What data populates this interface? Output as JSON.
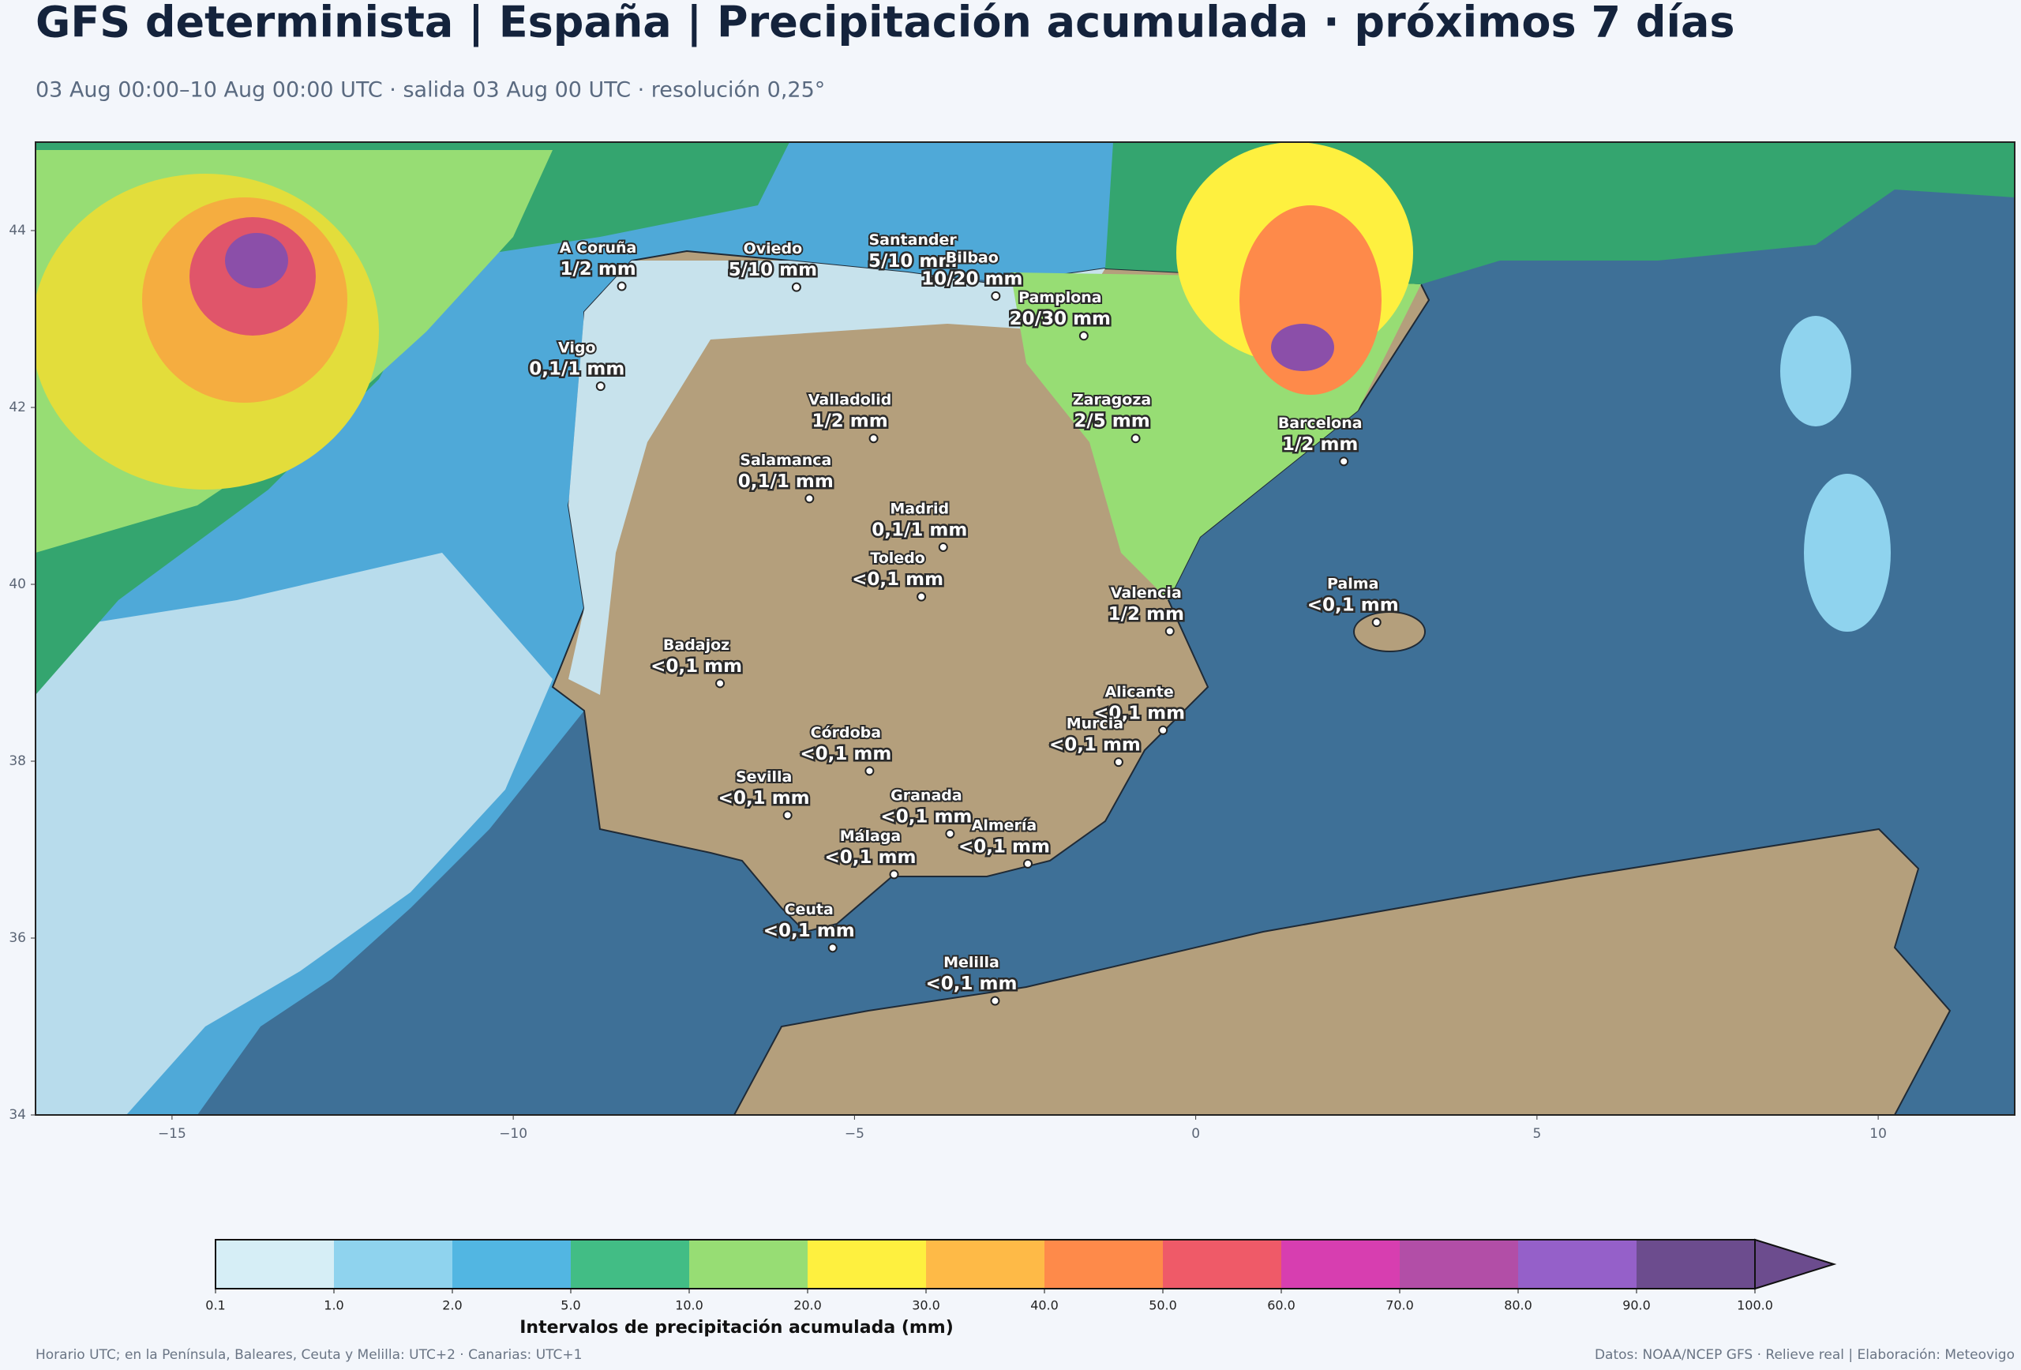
{
  "header": {
    "title": "GFS determinista | España | Precipitación acumulada · próximos 7 días",
    "subtitle": "03 Aug 00:00–10 Aug 00:00 UTC · salida 03 Aug 00 UTC · resolución 0,25°"
  },
  "map": {
    "xlim": [
      -17,
      12
    ],
    "ylim": [
      34,
      45
    ],
    "xticks": [
      {
        "value": -15,
        "label": "−15"
      },
      {
        "value": -10,
        "label": "−10"
      },
      {
        "value": -5,
        "label": "−5"
      },
      0,
      5,
      10
    ],
    "yticks": [
      34,
      36,
      38,
      40,
      42,
      44
    ],
    "cities": [
      {
        "name": "A Coruña",
        "value_label": "1/2 mm",
        "lon": -8.41,
        "lat": 43.37
      },
      {
        "name": "Oviedo",
        "value_label": "5/10 mm",
        "lon": -5.85,
        "lat": 43.36
      },
      {
        "name": "Santander",
        "value_label": "5/10 mm",
        "lon": -3.8,
        "lat": 43.46
      },
      {
        "name": "Bilbao",
        "value_label": "10/20 mm",
        "lon": -2.93,
        "lat": 43.26
      },
      {
        "name": "Pamplona",
        "value_label": "20/30 mm",
        "lon": -1.64,
        "lat": 42.81
      },
      {
        "name": "Vigo",
        "value_label": "0,1/1 mm",
        "lon": -8.72,
        "lat": 42.24
      },
      {
        "name": "Valladolid",
        "value_label": "1/2 mm",
        "lon": -4.72,
        "lat": 41.65
      },
      {
        "name": "Zaragoza",
        "value_label": "2/5 mm",
        "lon": -0.88,
        "lat": 41.65
      },
      {
        "name": "Barcelona",
        "value_label": "1/2 mm",
        "lon": 2.17,
        "lat": 41.39
      },
      {
        "name": "Salamanca",
        "value_label": "0,1/1 mm",
        "lon": -5.66,
        "lat": 40.97
      },
      {
        "name": "Madrid",
        "value_label": "0,1/1 mm",
        "lon": -3.7,
        "lat": 40.42
      },
      {
        "name": "Valencia",
        "value_label": "1/2 mm",
        "lon": -0.38,
        "lat": 39.47
      },
      {
        "name": "Palma",
        "value_label": "<0,1 mm",
        "lon": 2.65,
        "lat": 39.57
      },
      {
        "name": "Toledo",
        "value_label": "<0,1 mm",
        "lon": -4.02,
        "lat": 39.86
      },
      {
        "name": "Badajoz",
        "value_label": "<0,1 mm",
        "lon": -6.97,
        "lat": 38.88
      },
      {
        "name": "Córdoba",
        "value_label": "<0,1 mm",
        "lon": -4.78,
        "lat": 37.89
      },
      {
        "name": "Alicante",
        "value_label": "<0,1 mm",
        "lon": -0.48,
        "lat": 38.35
      },
      {
        "name": "Murcia",
        "value_label": "<0,1 mm",
        "lon": -1.13,
        "lat": 37.99
      },
      {
        "name": "Granada",
        "value_label": "<0,1 mm",
        "lon": -3.6,
        "lat": 37.18
      },
      {
        "name": "Sevilla",
        "value_label": "<0,1 mm",
        "lon": -5.98,
        "lat": 37.39
      },
      {
        "name": "Almería",
        "value_label": "<0,1 mm",
        "lon": -2.46,
        "lat": 36.84
      },
      {
        "name": "Málaga",
        "value_label": "<0,1 mm",
        "lon": -4.42,
        "lat": 36.72
      },
      {
        "name": "Ceuta",
        "value_label": "<0,1 mm",
        "lon": -5.32,
        "lat": 35.89
      },
      {
        "name": "Melilla",
        "value_label": "<0,1 mm",
        "lon": -2.94,
        "lat": 35.29
      }
    ]
  },
  "colorbar": {
    "label": "Intervalos de precipitación acumulada (mm)",
    "ticks": [
      0.1,
      {
        "value": 1,
        "label": "1.0"
      },
      {
        "value": 2,
        "label": "2.0"
      },
      {
        "value": 5,
        "label": "5.0"
      },
      {
        "value": 10,
        "label": "10.0"
      },
      {
        "value": 20,
        "label": "20.0"
      },
      {
        "value": 30,
        "label": "30.0"
      },
      {
        "value": 40,
        "label": "40.0"
      },
      {
        "value": 50,
        "label": "50.0"
      },
      {
        "value": 60,
        "label": "60.0"
      },
      {
        "value": 70,
        "label": "70.0"
      },
      {
        "value": 80,
        "label": "80.0"
      },
      {
        "value": 90,
        "label": "90.0"
      },
      {
        "value": 100,
        "label": "100.0"
      }
    ],
    "colors": [
      "#d6eef6",
      "#8fd3ee",
      "#52b6e2",
      "#42bd85",
      "#97dd74",
      "#fef03f",
      "#feba47",
      "#fe8a4a",
      "#ef5a68",
      "#d73eb0",
      "#b24ea7",
      "#9560c9",
      "#6c4c8e"
    ],
    "extend_color": "#6c4c8e"
  },
  "footer": {
    "left": "Horario UTC; en la Península, Baleares, Ceuta y Melilla: UTC+2 · Canarias: UTC+1",
    "right": "Datos: NOAA/NCEP GFS · Relieve real | Elaboración: Meteovigo"
  }
}
